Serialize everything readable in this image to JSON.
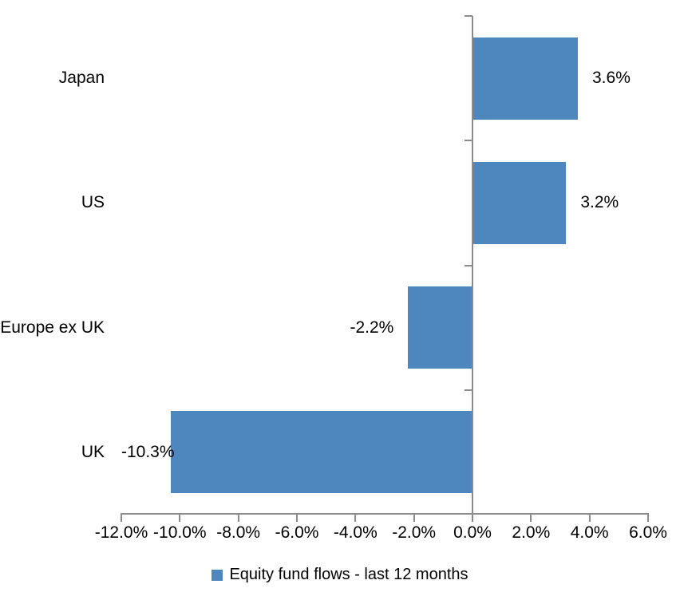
{
  "chart_data": {
    "type": "bar",
    "orientation": "horizontal",
    "title": "",
    "categories": [
      "Japan",
      "US",
      "Europe ex UK",
      "UK"
    ],
    "series": [
      {
        "name": "Equity fund flows - last 12 months",
        "values": [
          3.6,
          3.2,
          -2.2,
          -10.3
        ],
        "data_labels": [
          "3.6%",
          "3.2%",
          "-2.2%",
          "-10.3%"
        ],
        "color": "#4E87BD"
      }
    ],
    "xlim": [
      -12,
      6
    ],
    "x_ticks": [
      {
        "value": -12,
        "label": "-12.0%"
      },
      {
        "value": -10,
        "label": "-10.0%"
      },
      {
        "value": -8,
        "label": "-8.0%"
      },
      {
        "value": -6,
        "label": "-6.0%"
      },
      {
        "value": -4,
        "label": "-4.0%"
      },
      {
        "value": -2,
        "label": "-2.0%"
      },
      {
        "value": 0,
        "label": "0.0%"
      },
      {
        "value": 2,
        "label": "2.0%"
      },
      {
        "value": 4,
        "label": "4.0%"
      },
      {
        "value": 6,
        "label": "6.0%"
      }
    ],
    "grid": false,
    "legend_position": "bottom",
    "axis_color": "#8C8C8C",
    "text_color": "#000000",
    "background_color": "#FFFFFF"
  },
  "legend": {
    "label": "Equity fund flows - last 12 months",
    "swatch_color": "#4E87BD"
  }
}
